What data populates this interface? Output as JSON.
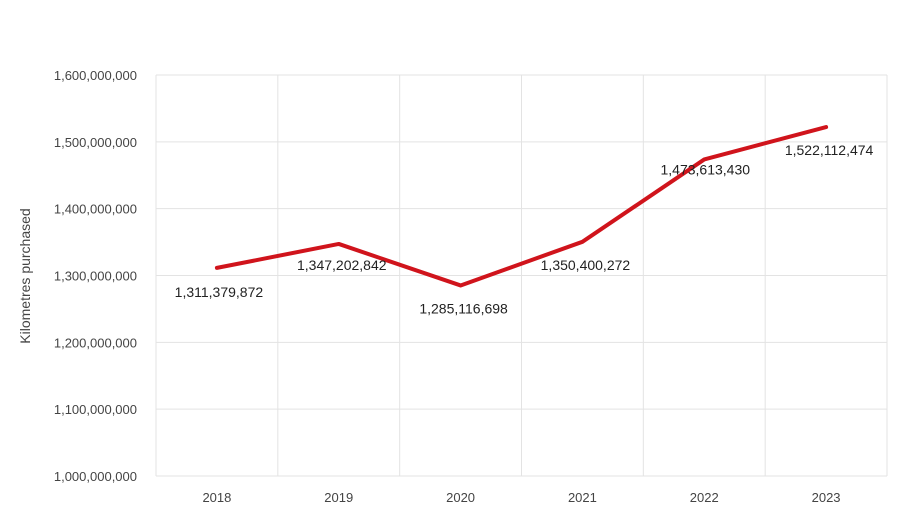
{
  "chart_data": {
    "type": "line",
    "title": "",
    "xlabel": "",
    "ylabel": "Kilometres purchased",
    "categories": [
      "2018",
      "2019",
      "2020",
      "2021",
      "2022",
      "2023"
    ],
    "series": [
      {
        "values": [
          1311379872,
          1347202842,
          1285116698,
          1350400272,
          1473613430,
          1522112474
        ]
      }
    ],
    "data_labels": [
      "1,311,379,872",
      "1,347,202,842",
      "1,285,116,698",
      "1,350,400,272",
      "1,473,613,430",
      "1,522,112,474"
    ],
    "y_ticks": [
      1000000000,
      1100000000,
      1200000000,
      1300000000,
      1400000000,
      1500000000,
      1600000000
    ],
    "y_tick_labels": [
      "1,000,000,000",
      "1,100,000,000",
      "1,200,000,000",
      "1,300,000,000",
      "1,400,000,000",
      "1,500,000,000",
      "1,600,000,000"
    ],
    "ylim": [
      1000000000,
      1600000000
    ],
    "grid": true,
    "legend": "none",
    "line_color": "#d0141c",
    "grid_color": "#e3e3e3"
  }
}
